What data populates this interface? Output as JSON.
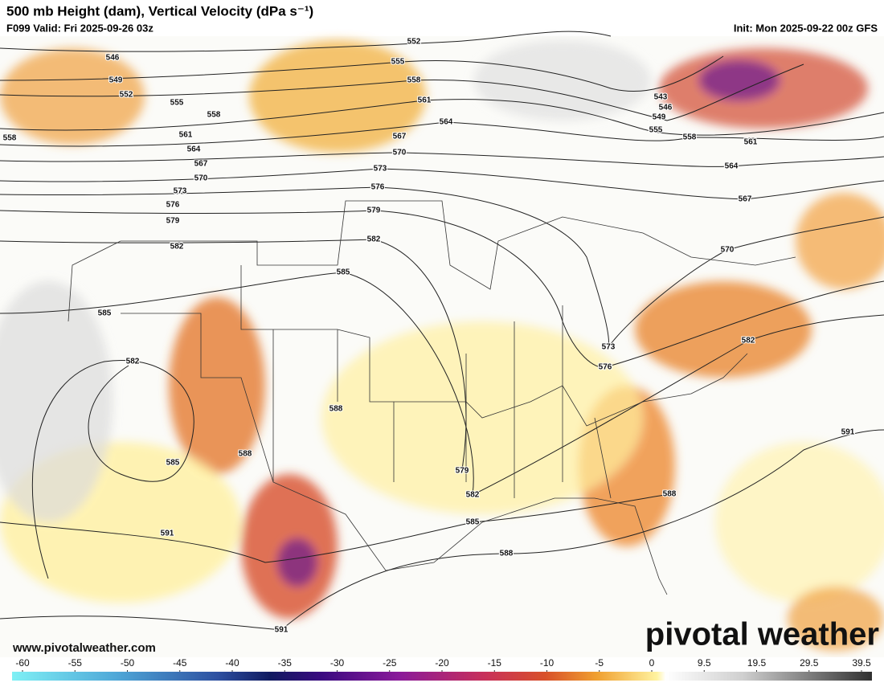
{
  "header": {
    "title": "500 mb Height (dam), Vertical Velocity (dPa s⁻¹)",
    "valid": "F099 Valid: Fri 2025-09-26 03z",
    "init": "Init: Mon 2025-09-22 00z GFS"
  },
  "map": {
    "contour_labels": [
      546,
      549,
      552,
      555,
      558,
      561,
      564,
      567,
      570,
      573,
      576,
      579,
      582,
      558,
      585,
      582,
      585,
      591,
      591,
      588,
      588,
      585,
      582,
      579,
      576,
      573,
      570,
      567,
      561,
      564,
      558,
      555,
      552,
      543,
      546,
      549,
      555,
      558,
      561,
      564,
      567,
      570,
      573,
      576,
      582,
      579,
      582,
      585,
      588,
      588,
      591
    ]
  },
  "colorbar": {
    "ticks": [
      -60,
      -55,
      -50,
      -45,
      -40,
      -35,
      -30,
      -25,
      -20,
      -15,
      -10,
      -5,
      0,
      9.5,
      19.5,
      29.5,
      39.5
    ]
  },
  "footer": {
    "url": "www.pivotalweather.com",
    "brand": "pivotal weather"
  }
}
